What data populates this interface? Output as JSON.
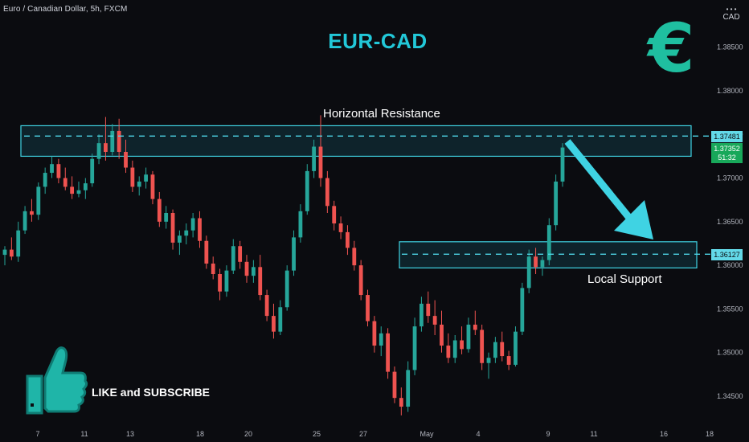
{
  "header": {
    "symbol_line": "Euro / Canadian Dollar, 5h, FXCM"
  },
  "title": "EUR-CAD",
  "currency_icon": {
    "glyph": "€",
    "name": "euro-icon",
    "color": "#1fbfa0"
  },
  "axis_unit": {
    "dots": "• • •",
    "currency": "CAD"
  },
  "annotations": {
    "resistance_label": "Horizontal Resistance",
    "support_label": "Local Support",
    "cta_text": "LIKE and SUBSCRIBE"
  },
  "price_labels": {
    "resistance": "1.37481",
    "last_price": "1.37352",
    "countdown": "51:32",
    "support": "1.36127"
  },
  "colors": {
    "background": "#0b0c10",
    "up": "#26a69a",
    "down": "#ef5350",
    "zone_border": "#3fd3e3",
    "zone_fill": "rgba(28,120,140,0.22)",
    "dashed": "#4fd7e8",
    "arrow": "#3fd3e3",
    "title": "#22c8d8"
  },
  "chart_data": {
    "type": "candlestick",
    "y_ticks": [
      "1.34500",
      "1.35000",
      "1.35500",
      "1.36000",
      "1.36500",
      "1.37000",
      "1.37500",
      "1.38000",
      "1.38500"
    ],
    "y_tick_values": [
      1.345,
      1.35,
      1.355,
      1.36,
      1.365,
      1.37,
      1.375,
      1.38,
      1.385
    ],
    "ylim": [
      1.3425,
      1.3895
    ],
    "x_ticks": [
      "7",
      "11",
      "13",
      "18",
      "20",
      "25",
      "27",
      "May",
      "4",
      "9",
      "11",
      "16",
      "18"
    ],
    "resistance_zone": [
      1.3725,
      1.376
    ],
    "resistance_level": 1.37481,
    "support_zone": [
      1.3597,
      1.3627
    ],
    "support_level": 1.36127,
    "last_price": 1.37352,
    "candles": [
      [
        1.3612,
        1.3622,
        1.36,
        1.3618
      ],
      [
        1.3618,
        1.3632,
        1.3606,
        1.361
      ],
      [
        1.361,
        1.365,
        1.3604,
        1.364
      ],
      [
        1.364,
        1.3668,
        1.3636,
        1.3662
      ],
      [
        1.3662,
        1.3676,
        1.365,
        1.3658
      ],
      [
        1.3658,
        1.3695,
        1.3652,
        1.369
      ],
      [
        1.369,
        1.3712,
        1.3682,
        1.3706
      ],
      [
        1.3706,
        1.3725,
        1.37,
        1.3716
      ],
      [
        1.3716,
        1.3722,
        1.3694,
        1.37
      ],
      [
        1.37,
        1.3712,
        1.3686,
        1.369
      ],
      [
        1.369,
        1.3702,
        1.3676,
        1.3682
      ],
      [
        1.3682,
        1.3696,
        1.3678,
        1.3686
      ],
      [
        1.3686,
        1.37,
        1.3676,
        1.3694
      ],
      [
        1.3694,
        1.3728,
        1.369,
        1.3722
      ],
      [
        1.3722,
        1.375,
        1.3716,
        1.374
      ],
      [
        1.374,
        1.377,
        1.372,
        1.373
      ],
      [
        1.373,
        1.3762,
        1.3726,
        1.3754
      ],
      [
        1.3754,
        1.3768,
        1.3722,
        1.373
      ],
      [
        1.373,
        1.3744,
        1.3706,
        1.3712
      ],
      [
        1.3712,
        1.372,
        1.3684,
        1.369
      ],
      [
        1.369,
        1.3702,
        1.368,
        1.3696
      ],
      [
        1.3696,
        1.3712,
        1.3688,
        1.3704
      ],
      [
        1.3704,
        1.3708,
        1.367,
        1.3676
      ],
      [
        1.3676,
        1.3684,
        1.3644,
        1.365
      ],
      [
        1.365,
        1.3668,
        1.3642,
        1.366
      ],
      [
        1.366,
        1.3664,
        1.3618,
        1.3626
      ],
      [
        1.3626,
        1.364,
        1.3612,
        1.3634
      ],
      [
        1.3634,
        1.3648,
        1.3624,
        1.364
      ],
      [
        1.364,
        1.366,
        1.3632,
        1.3654
      ],
      [
        1.3654,
        1.3662,
        1.362,
        1.3628
      ],
      [
        1.3628,
        1.3634,
        1.3596,
        1.3602
      ],
      [
        1.3602,
        1.361,
        1.3584,
        1.359
      ],
      [
        1.359,
        1.3596,
        1.356,
        1.357
      ],
      [
        1.357,
        1.36,
        1.3564,
        1.3594
      ],
      [
        1.3594,
        1.363,
        1.359,
        1.3622
      ],
      [
        1.3622,
        1.3628,
        1.3596,
        1.3604
      ],
      [
        1.3604,
        1.3612,
        1.358,
        1.3588
      ],
      [
        1.3588,
        1.3606,
        1.358,
        1.3598
      ],
      [
        1.3598,
        1.3612,
        1.356,
        1.3566
      ],
      [
        1.3566,
        1.3572,
        1.3536,
        1.3542
      ],
      [
        1.3542,
        1.3556,
        1.3516,
        1.3524
      ],
      [
        1.3524,
        1.356,
        1.352,
        1.3552
      ],
      [
        1.3552,
        1.36,
        1.3548,
        1.3594
      ],
      [
        1.3594,
        1.364,
        1.3588,
        1.3632
      ],
      [
        1.3632,
        1.367,
        1.3626,
        1.3662
      ],
      [
        1.3662,
        1.3716,
        1.3658,
        1.3708
      ],
      [
        1.3708,
        1.3744,
        1.37,
        1.3736
      ],
      [
        1.3736,
        1.3772,
        1.369,
        1.37
      ],
      [
        1.37,
        1.3708,
        1.366,
        1.3668
      ],
      [
        1.3668,
        1.3674,
        1.364,
        1.3648
      ],
      [
        1.3648,
        1.3656,
        1.363,
        1.3638
      ],
      [
        1.3638,
        1.3646,
        1.3612,
        1.362
      ],
      [
        1.362,
        1.3628,
        1.3594,
        1.36
      ],
      [
        1.36,
        1.3606,
        1.356,
        1.3566
      ],
      [
        1.3566,
        1.3572,
        1.353,
        1.3536
      ],
      [
        1.3536,
        1.3542,
        1.35,
        1.3508
      ],
      [
        1.3508,
        1.353,
        1.3496,
        1.3522
      ],
      [
        1.3522,
        1.3528,
        1.347,
        1.3478
      ],
      [
        1.3478,
        1.3484,
        1.3442,
        1.3448
      ],
      [
        1.3448,
        1.346,
        1.3428,
        1.3438
      ],
      [
        1.3438,
        1.349,
        1.3432,
        1.348
      ],
      [
        1.348,
        1.354,
        1.3474,
        1.353
      ],
      [
        1.353,
        1.3564,
        1.3524,
        1.3556
      ],
      [
        1.3556,
        1.357,
        1.3534,
        1.3542
      ],
      [
        1.3542,
        1.356,
        1.352,
        1.3532
      ],
      [
        1.3532,
        1.3548,
        1.35,
        1.3508
      ],
      [
        1.3508,
        1.3522,
        1.3488,
        1.3494
      ],
      [
        1.3494,
        1.352,
        1.3488,
        1.3514
      ],
      [
        1.3514,
        1.353,
        1.3498,
        1.3504
      ],
      [
        1.3504,
        1.354,
        1.35,
        1.3532
      ],
      [
        1.3532,
        1.3548,
        1.352,
        1.3526
      ],
      [
        1.3526,
        1.3532,
        1.348,
        1.3488
      ],
      [
        1.3488,
        1.35,
        1.347,
        1.3494
      ],
      [
        1.3494,
        1.3518,
        1.3488,
        1.3512
      ],
      [
        1.3512,
        1.3524,
        1.349,
        1.3496
      ],
      [
        1.3496,
        1.3502,
        1.348,
        1.3486
      ],
      [
        1.3486,
        1.353,
        1.3484,
        1.3524
      ],
      [
        1.3524,
        1.358,
        1.352,
        1.3574
      ],
      [
        1.3574,
        1.3618,
        1.3568,
        1.361
      ],
      [
        1.361,
        1.362,
        1.359,
        1.3598
      ],
      [
        1.3598,
        1.361,
        1.3588,
        1.3606
      ],
      [
        1.3606,
        1.3654,
        1.36,
        1.3646
      ],
      [
        1.3646,
        1.3704,
        1.364,
        1.3696
      ],
      [
        1.3696,
        1.374,
        1.369,
        1.3735
      ]
    ]
  }
}
